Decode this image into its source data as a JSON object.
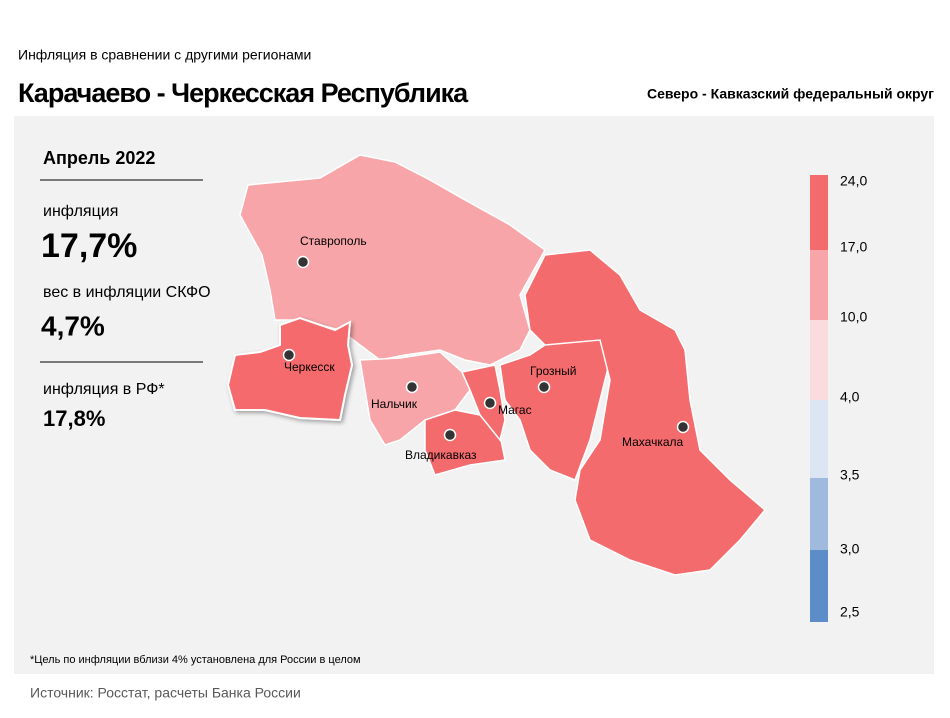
{
  "header": {
    "subtitle": "Инфляция  в сравнении  с другими  регионами",
    "title": "Карачаево - Черкесская Республика",
    "district": "Северо - Кавказский федеральный округ"
  },
  "panel": {
    "period": "Апрель 2022",
    "inflation_label": "инфляция",
    "inflation_value": "17,7%",
    "weight_label": "вес в инфляции  СКФО",
    "weight_value": "4,7%",
    "rf_label": "инфляция  в РФ*",
    "rf_value": "17,8%"
  },
  "legend": {
    "ticks": [
      "24,0",
      "17,0",
      "10,0",
      "4,0",
      "3,5",
      "3,0",
      "2,5"
    ],
    "colors": [
      "#f46b6d",
      "#f7a5a8",
      "#fadcdf",
      "#dce6f3",
      "#9fbadd",
      "#5d8dc9"
    ]
  },
  "cities": [
    "Ставрополь",
    "Черкесск",
    "Нальчик",
    "Владикавказ",
    "Магас",
    "Грозный",
    "Махачкала"
  ],
  "footnote": "*Цель по инфляции вблизи 4% установлена для России в целом",
  "source": "Источник: Росстат, расчеты Банка России"
}
